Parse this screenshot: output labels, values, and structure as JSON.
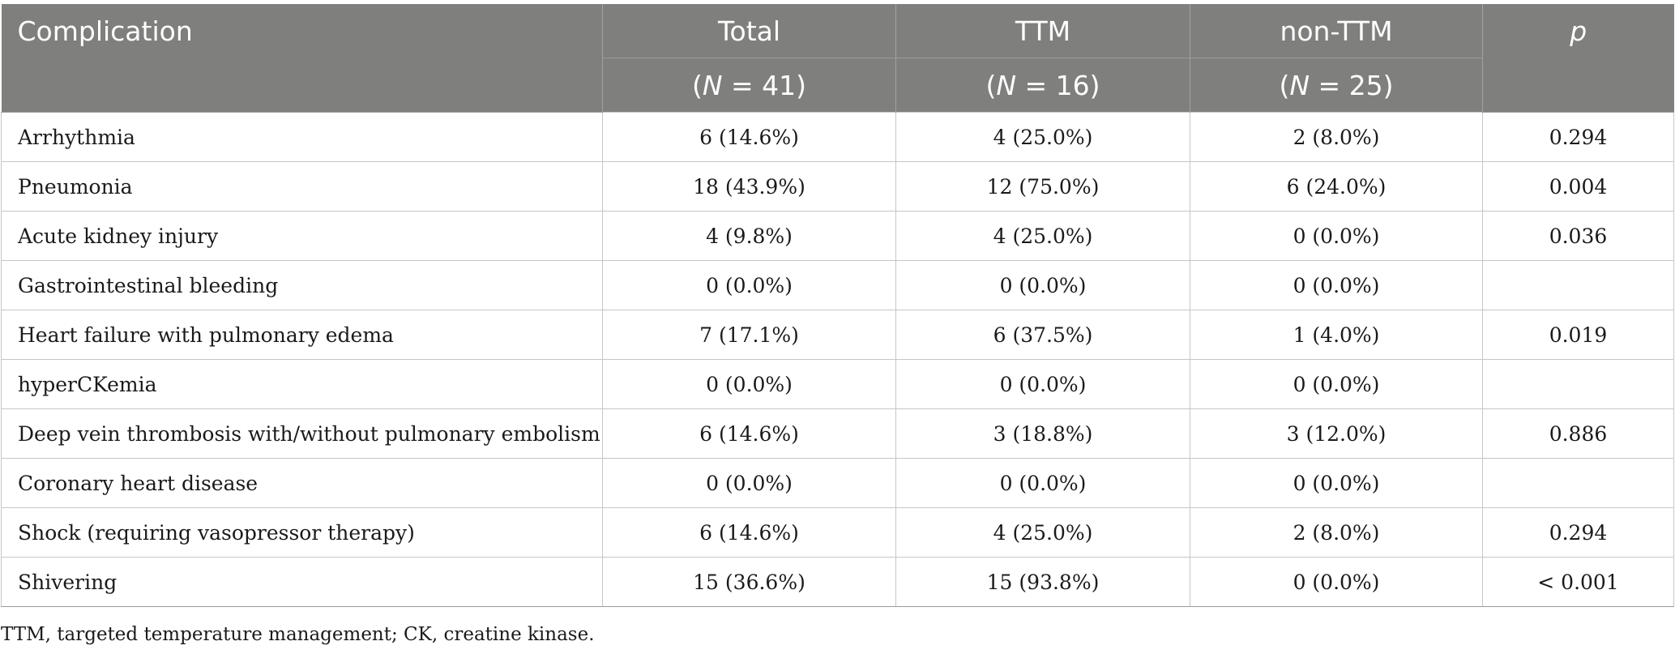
{
  "table": {
    "header": {
      "complication": "Complication",
      "total": "Total",
      "ttm": "TTM",
      "non_ttm": "non-TTM",
      "p": "p",
      "total_n": {
        "open": "(",
        "n": "N",
        "rest": " = 41)"
      },
      "ttm_n": {
        "open": "(",
        "n": "N",
        "rest": " = 16)"
      },
      "non_ttm_n": {
        "open": "(",
        "n": "N",
        "rest": " = 25)"
      }
    },
    "rows": [
      {
        "complication": "Arrhythmia",
        "total": "6 (14.6%)",
        "ttm": "4 (25.0%)",
        "non_ttm": "2 (8.0%)",
        "p": "0.294"
      },
      {
        "complication": "Pneumonia",
        "total": "18 (43.9%)",
        "ttm": "12 (75.0%)",
        "non_ttm": "6 (24.0%)",
        "p": "0.004"
      },
      {
        "complication": "Acute kidney injury",
        "total": "4 (9.8%)",
        "ttm": "4 (25.0%)",
        "non_ttm": "0 (0.0%)",
        "p": "0.036"
      },
      {
        "complication": "Gastrointestinal bleeding",
        "total": "0 (0.0%)",
        "ttm": "0 (0.0%)",
        "non_ttm": "0 (0.0%)",
        "p": ""
      },
      {
        "complication": "Heart failure with pulmonary edema",
        "total": "7 (17.1%)",
        "ttm": "6 (37.5%)",
        "non_ttm": "1 (4.0%)",
        "p": "0.019"
      },
      {
        "complication": "hyperCKemia",
        "total": "0 (0.0%)",
        "ttm": "0 (0.0%)",
        "non_ttm": "0 (0.0%)",
        "p": ""
      },
      {
        "complication": "Deep vein thrombosis with/without pulmonary embolism",
        "total": "6 (14.6%)",
        "ttm": "3 (18.8%)",
        "non_ttm": "3 (12.0%)",
        "p": "0.886"
      },
      {
        "complication": "Coronary heart disease",
        "total": "0 (0.0%)",
        "ttm": "0 (0.0%)",
        "non_ttm": "0 (0.0%)",
        "p": ""
      },
      {
        "complication": "Shock (requiring vasopressor therapy)",
        "total": "6 (14.6%)",
        "ttm": "4 (25.0%)",
        "non_ttm": "2 (8.0%)",
        "p": "0.294"
      },
      {
        "complication": "Shivering",
        "total": "15 (36.6%)",
        "ttm": "15 (93.8%)",
        "non_ttm": "0 (0.0%)",
        "p": "< 0.001"
      }
    ]
  },
  "footnote": "TTM, targeted temperature management; CK, creatine kinase."
}
